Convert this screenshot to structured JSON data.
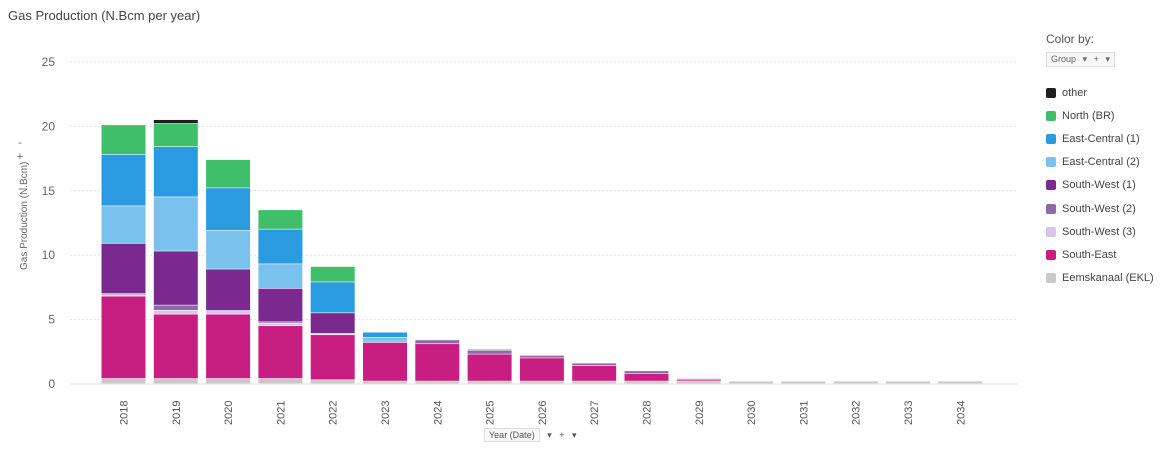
{
  "title": "Gas Production (N.Bcm per year)",
  "y_axis": {
    "title": "Gas Production (N.Bcm)",
    "controls": [
      "-",
      "+",
      "-"
    ]
  },
  "x_axis": {
    "control_label": "Year (Date)",
    "control_plus": "+",
    "control_menu": "▾",
    "control_arrow": "▾"
  },
  "legend": {
    "title": "Color by:",
    "selector_label": "Group",
    "selector_arrow": "▾",
    "selector_plus": "+",
    "selector_menu": "▾"
  },
  "chart_data": {
    "type": "bar",
    "stacked": true,
    "categories": [
      "2018",
      "2019",
      "2020",
      "2021",
      "2022",
      "2023",
      "2024",
      "2025",
      "2026",
      "2027",
      "2028",
      "2029",
      "2030",
      "2031",
      "2032",
      "2033",
      "2034"
    ],
    "ylim": [
      0,
      25
    ],
    "yticks": [
      0,
      5,
      10,
      15,
      20,
      25
    ],
    "grid": true,
    "legend_position": "right",
    "series": [
      {
        "name": "Eemskanaal (EKL)",
        "color": "#c8c8c8",
        "values": [
          0.4,
          0.4,
          0.4,
          0.4,
          0.3,
          0.2,
          0.2,
          0.2,
          0.2,
          0.2,
          0.2,
          0.2,
          0.2,
          0.2,
          0.2,
          0.2,
          0.2
        ]
      },
      {
        "name": "South-East",
        "color": "#c81e82",
        "values": [
          6.4,
          5.0,
          5.0,
          4.1,
          3.5,
          3.0,
          2.9,
          2.1,
          1.8,
          1.2,
          0.6,
          0.1,
          0,
          0,
          0,
          0,
          0
        ]
      },
      {
        "name": "South-West (3)",
        "color": "#d7c6ea",
        "values": [
          0.1,
          0.3,
          0.2,
          0.2,
          0.1,
          0,
          0,
          0,
          0,
          0,
          0,
          0,
          0,
          0,
          0,
          0,
          0
        ]
      },
      {
        "name": "South-West (2)",
        "color": "#8c69a9",
        "values": [
          0.1,
          0.4,
          0.1,
          0.1,
          0,
          0.1,
          0.3,
          0.3,
          0.2,
          0.2,
          0.2,
          0.1,
          0,
          0,
          0,
          0,
          0
        ]
      },
      {
        "name": "South-West (1)",
        "color": "#7a2a8e",
        "values": [
          3.9,
          4.2,
          3.2,
          2.6,
          1.6,
          0,
          0,
          0,
          0,
          0,
          0,
          0,
          0,
          0,
          0,
          0,
          0
        ]
      },
      {
        "name": "East-Central (2)",
        "color": "#7ac1ee",
        "values": [
          2.9,
          4.2,
          3.0,
          1.9,
          0,
          0.3,
          0,
          0.1,
          0,
          0,
          0,
          0,
          0,
          0,
          0,
          0,
          0
        ]
      },
      {
        "name": "East-Central (1)",
        "color": "#2a9be0",
        "values": [
          4.0,
          3.9,
          3.3,
          2.7,
          2.4,
          0.4,
          0,
          0,
          0,
          0,
          0,
          0,
          0,
          0,
          0,
          0,
          0
        ]
      },
      {
        "name": "North (BR)",
        "color": "#3fbf6a",
        "values": [
          2.3,
          1.8,
          2.2,
          1.5,
          1.2,
          0,
          0,
          0,
          0,
          0,
          0,
          0,
          0,
          0,
          0,
          0,
          0
        ]
      },
      {
        "name": "other",
        "color": "#1f1f1f",
        "values": [
          0,
          0.3,
          0,
          0,
          0,
          0,
          0,
          0,
          0,
          0,
          0,
          0,
          0,
          0,
          0,
          0,
          0
        ]
      }
    ],
    "legend_order": [
      "other",
      "North (BR)",
      "East-Central (1)",
      "East-Central (2)",
      "South-West (1)",
      "South-West (2)",
      "South-West (3)",
      "South-East",
      "Eemskanaal (EKL)"
    ]
  }
}
